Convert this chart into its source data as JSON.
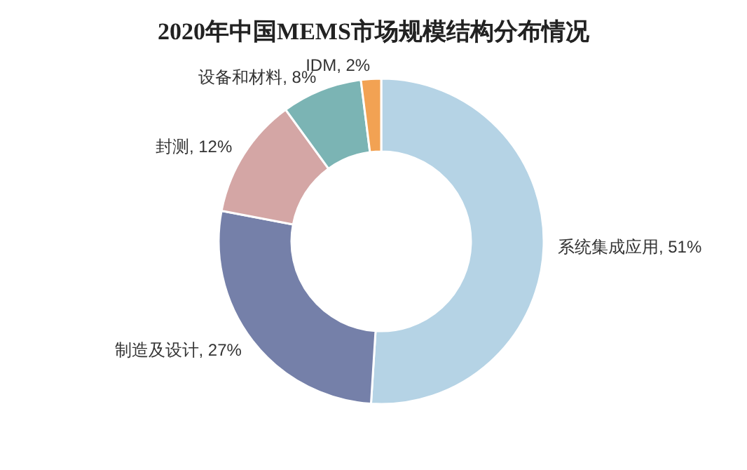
{
  "chart_data": {
    "type": "donut",
    "title": "2020年中国MEMS市场规模结构分布情况",
    "categories": [
      "系统集成应用",
      "制造及设计",
      "封测",
      "设备和材料",
      "IDM"
    ],
    "values": [
      51,
      27,
      12,
      8,
      2
    ],
    "colors": [
      "#b5d3e5",
      "#7580a9",
      "#d4a6a5",
      "#7bb4b4",
      "#f2a253"
    ],
    "value_labels": [
      ", 51%",
      ", 27%",
      ", 12%",
      ", 8%",
      ", 2%"
    ]
  }
}
